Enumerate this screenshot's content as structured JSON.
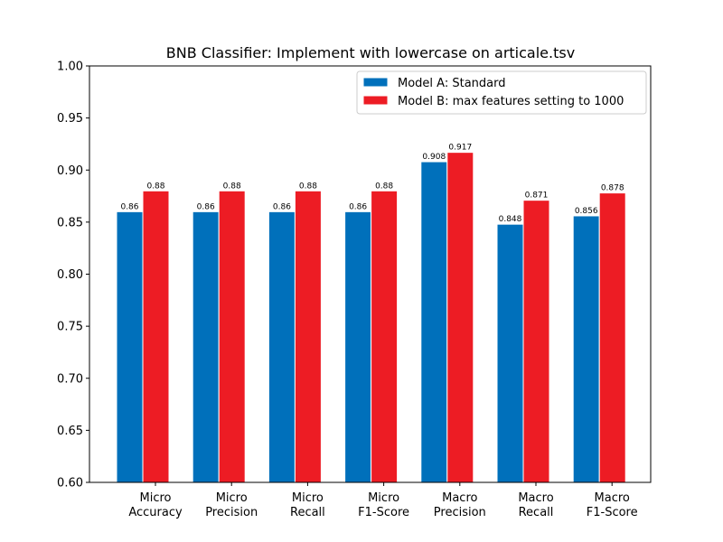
{
  "chart_data": {
    "type": "bar",
    "title": "BNB Classifier: Implement with lowercase on articale.tsv",
    "xlabel": "",
    "ylabel": "",
    "ylim": [
      0.6,
      1.0
    ],
    "yticks": [
      "0.60",
      "0.65",
      "0.70",
      "0.75",
      "0.80",
      "0.85",
      "0.90",
      "0.95",
      "1.00"
    ],
    "categories": [
      [
        "Micro",
        "Accuracy"
      ],
      [
        "Micro",
        "Precision"
      ],
      [
        "Micro",
        "Recall"
      ],
      [
        "Micro",
        "F1-Score"
      ],
      [
        "Macro",
        "Precision"
      ],
      [
        "Macro",
        "Recall"
      ],
      [
        "Macro",
        "F1-Score"
      ]
    ],
    "series": [
      {
        "name": "Model A: Standard",
        "color": "#0070BB",
        "values": [
          0.86,
          0.86,
          0.86,
          0.86,
          0.908,
          0.848,
          0.856
        ],
        "labels": [
          "0.86",
          "0.86",
          "0.86",
          "0.86",
          "0.908",
          "0.848",
          "0.856"
        ]
      },
      {
        "name": "Model B: max features setting to 1000",
        "color": "#ED1C24",
        "values": [
          0.88,
          0.88,
          0.88,
          0.88,
          0.917,
          0.871,
          0.878
        ],
        "labels": [
          "0.88",
          "0.88",
          "0.88",
          "0.88",
          "0.917",
          "0.871",
          "0.878"
        ]
      }
    ],
    "grid": false,
    "legend_position": "top-right"
  }
}
